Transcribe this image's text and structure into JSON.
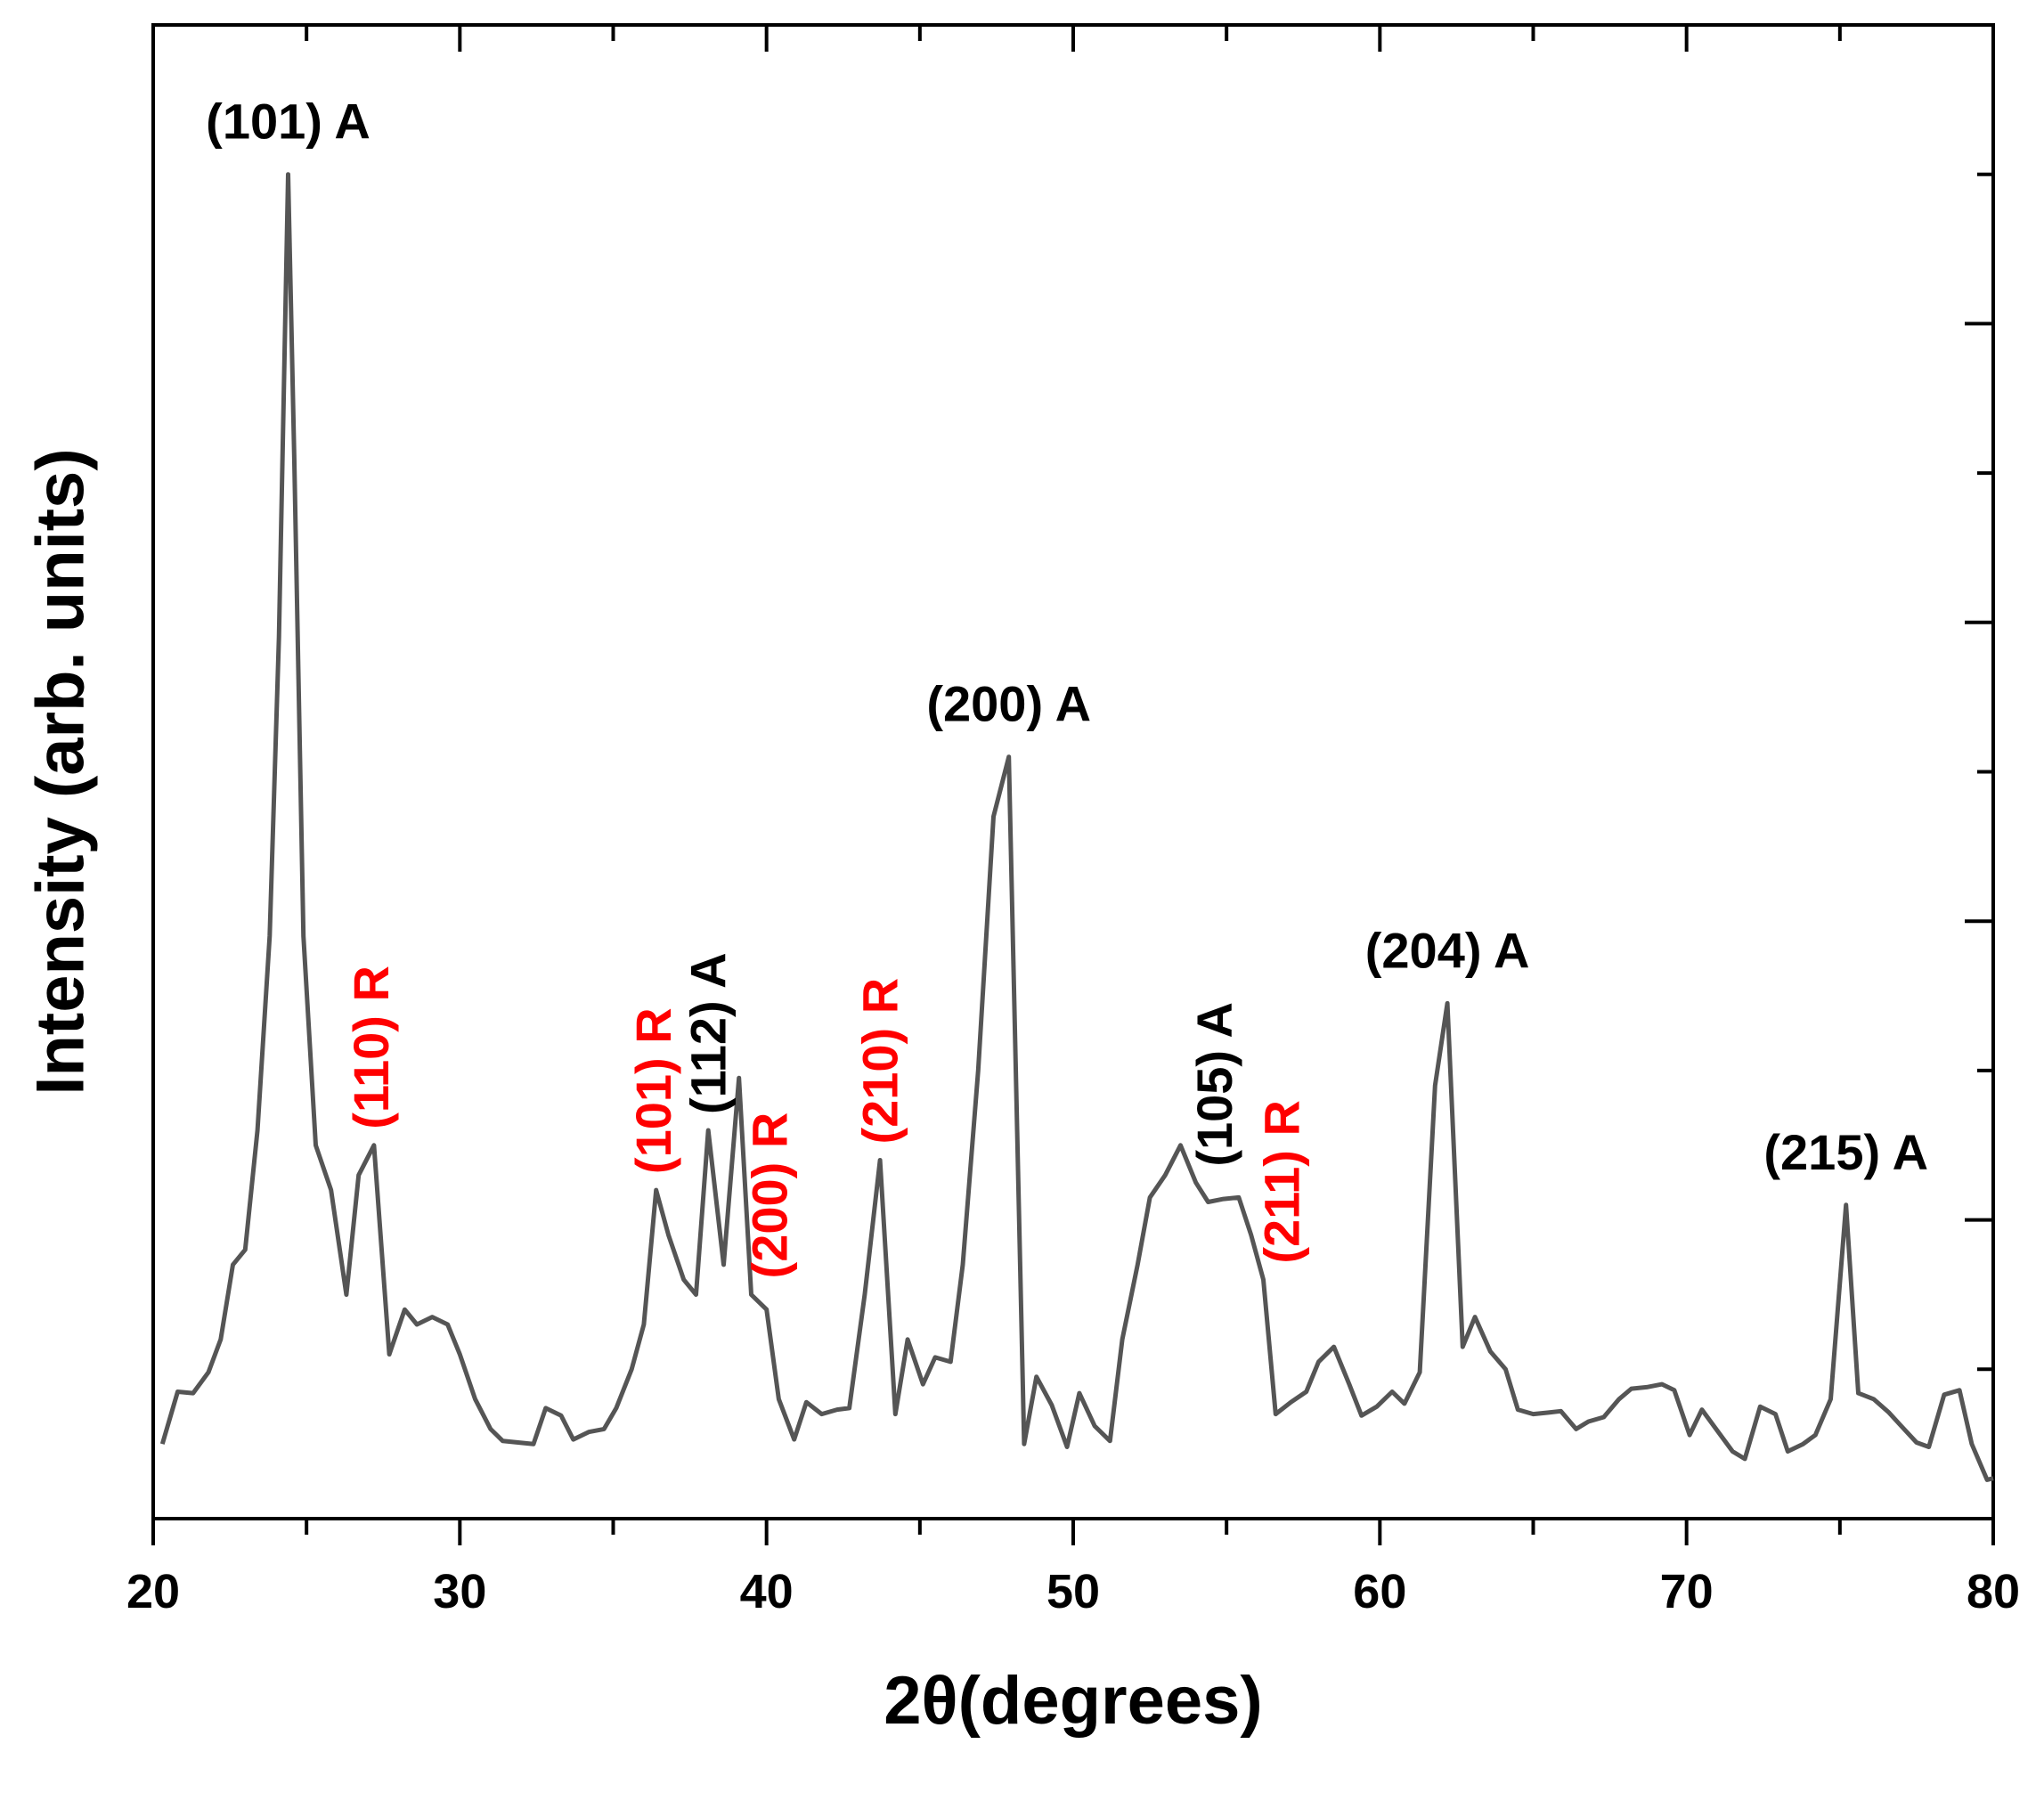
{
  "chart_data": {
    "type": "line",
    "xlabel": "2θ(degrees)",
    "ylabel": "Intensity (arb. units)",
    "xlim": [
      20,
      80
    ],
    "ylim": [
      0,
      100
    ],
    "xticks": [
      20,
      30,
      40,
      50,
      60,
      70,
      80
    ],
    "yticks_unlabeled": [
      10,
      20,
      30,
      40,
      50,
      60,
      70,
      80,
      90
    ],
    "grid": false,
    "colors": {
      "line": "#555555",
      "anatase": "#000000",
      "rutile": "#ff0000"
    },
    "series": [
      {
        "x": [
          20.3,
          20.8,
          21.3,
          21.8,
          22.2,
          22.6,
          23.0,
          23.4,
          23.8,
          24.1,
          24.4,
          24.6,
          24.9,
          25.3,
          25.8,
          26.3,
          26.7,
          27.2,
          27.7,
          28.2,
          28.6,
          29.1,
          29.6,
          30.0,
          30.5,
          31.0,
          31.4,
          31.9,
          32.4,
          32.8,
          33.3,
          33.7,
          34.2,
          34.7,
          35.1,
          35.6,
          36.0,
          36.4,
          36.8,
          37.3,
          37.7,
          38.1,
          38.6,
          39.1,
          39.5,
          40.0,
          40.4,
          40.9,
          41.3,
          41.8,
          42.3,
          42.7,
          43.2,
          43.7,
          44.2,
          44.6,
          45.1,
          45.5,
          46.0,
          46.4,
          46.9,
          47.4,
          47.9,
          48.4,
          48.8,
          49.3,
          49.8,
          50.2,
          50.7,
          51.2,
          51.6,
          52.1,
          52.5,
          53.0,
          53.5,
          54.0,
          54.4,
          54.9,
          55.4,
          55.8,
          56.2,
          56.6,
          57.1,
          57.6,
          58.0,
          58.5,
          59.0,
          59.4,
          59.9,
          60.4,
          60.8,
          61.3,
          61.8,
          62.2,
          62.7,
          63.1,
          63.6,
          64.1,
          64.5,
          65.0,
          65.5,
          65.9,
          66.4,
          66.8,
          67.3,
          67.8,
          68.2,
          68.7,
          69.2,
          69.6,
          70.1,
          70.5,
          71.0,
          71.5,
          71.9,
          72.4,
          72.9,
          73.3,
          73.8,
          74.2,
          74.7,
          75.2,
          75.6,
          76.1,
          76.6,
          77.0,
          77.5,
          77.9,
          78.4,
          78.9,
          79.3,
          79.8,
          80.0
        ],
        "y": [
          5.0,
          8.5,
          8.4,
          9.8,
          12.0,
          17.0,
          18.0,
          26.0,
          39.0,
          59.0,
          90.0,
          71.0,
          39.0,
          25.0,
          22.0,
          15.0,
          23.0,
          25.0,
          11.0,
          14.0,
          13.0,
          13.5,
          13.0,
          11.0,
          8.0,
          6.0,
          5.2,
          5.1,
          5.0,
          7.4,
          6.9,
          5.3,
          5.8,
          6.0,
          7.4,
          10.0,
          13.0,
          22.0,
          19.0,
          16.0,
          15.0,
          26.0,
          17.0,
          29.5,
          15.0,
          14.0,
          8.0,
          5.3,
          7.8,
          7.0,
          7.3,
          7.4,
          15.0,
          24.0,
          7.0,
          12.0,
          9.0,
          10.8,
          10.5,
          17.0,
          30.0,
          47.0,
          51.0,
          5.0,
          9.5,
          7.6,
          4.8,
          8.4,
          6.2,
          5.2,
          12.0,
          17.0,
          21.5,
          23.0,
          25.0,
          22.5,
          21.2,
          21.4,
          21.5,
          19.0,
          16.0,
          7.0,
          7.8,
          8.5,
          10.5,
          11.5,
          9.0,
          6.9,
          7.5,
          8.5,
          7.7,
          9.8,
          29.0,
          34.5,
          11.5,
          13.5,
          11.2,
          10.0,
          7.3,
          7.0,
          7.1,
          7.2,
          6.0,
          6.5,
          6.8,
          8.0,
          8.7,
          8.8,
          9.0,
          8.6,
          5.6,
          7.3,
          5.9,
          4.5,
          4.0,
          7.5,
          7.0,
          4.5,
          5.0,
          5.6,
          8.0,
          21.0,
          8.4,
          8.0,
          7.1,
          6.2,
          5.1,
          4.8,
          8.3,
          8.6,
          5.0,
          2.6,
          2.7
        ]
      }
    ],
    "annotations": [
      {
        "text": "(101) A",
        "phase": "A",
        "x": 24.4,
        "orientation": "horizontal"
      },
      {
        "text": "(110) R",
        "phase": "R",
        "x": 27.1,
        "orientation": "vertical"
      },
      {
        "text": "(101) R",
        "phase": "R",
        "x": 36.3,
        "orientation": "vertical"
      },
      {
        "text": "(112) A",
        "phase": "A",
        "x": 38.1,
        "orientation": "vertical"
      },
      {
        "text": "(200) R",
        "phase": "R",
        "x": 40.1,
        "orientation": "vertical"
      },
      {
        "text": "(210) R",
        "phase": "R",
        "x": 43.7,
        "orientation": "vertical"
      },
      {
        "text": "(200) A",
        "phase": "A",
        "x": 47.9,
        "orientation": "horizontal"
      },
      {
        "text": "(105) A",
        "phase": "A",
        "x": 54.6,
        "orientation": "vertical"
      },
      {
        "text": "(211) R",
        "phase": "R",
        "x": 56.8,
        "orientation": "vertical"
      },
      {
        "text": "(204) A",
        "phase": "A",
        "x": 62.2,
        "orientation": "horizontal"
      },
      {
        "text": "(215) A",
        "phase": "A",
        "x": 75.2,
        "orientation": "horizontal"
      }
    ]
  }
}
